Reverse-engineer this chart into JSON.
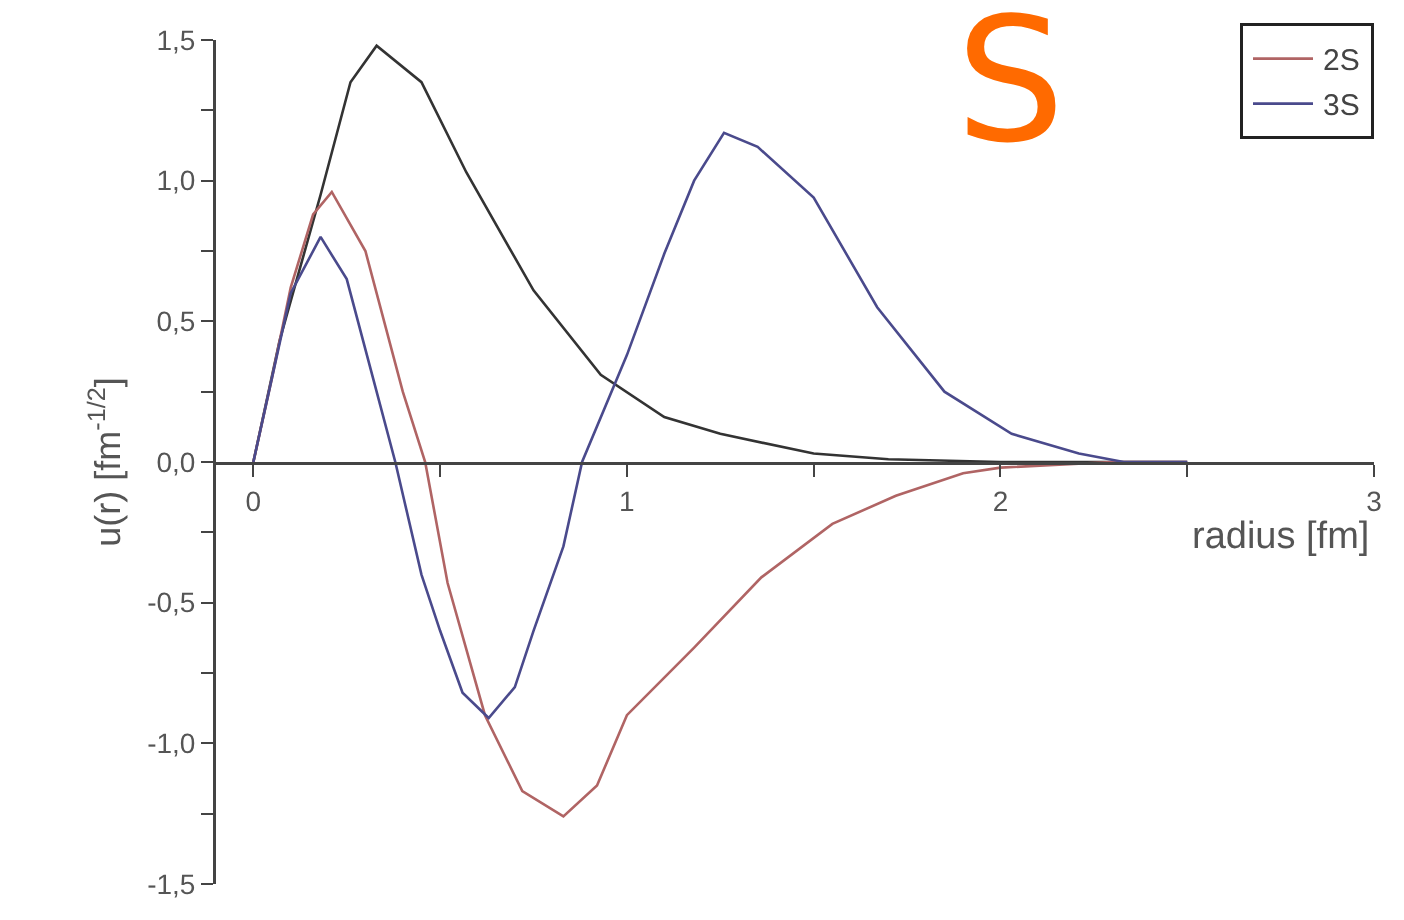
{
  "chart_data": {
    "type": "line",
    "title": "S",
    "xlabel": "radius [fm]",
    "ylabel": "u(r) [fm$^{-1/2}$]",
    "xlim": [
      -0.1,
      3
    ],
    "ylim": [
      -1.5,
      1.5
    ],
    "xticks": [
      0,
      {
        "value": 0.5,
        "label": null
      },
      1,
      {
        "value": 1.5,
        "label": null
      },
      2,
      {
        "value": 2.5,
        "label": null
      },
      3
    ],
    "yticks": [
      {
        "value": -1.5,
        "label": "-1,5"
      },
      {
        "value": -1.25,
        "label": null
      },
      {
        "value": -1,
        "label": "-1,0"
      },
      {
        "value": -0.75,
        "label": null
      },
      {
        "value": -0.5,
        "label": "-0,5"
      },
      {
        "value": -0.25,
        "label": null
      },
      {
        "value": 0,
        "label": "0,0"
      },
      {
        "value": 0.25,
        "label": null
      },
      {
        "value": 0.5,
        "label": "0,5"
      },
      {
        "value": 0.75,
        "label": null
      },
      {
        "value": 1,
        "label": "1,0"
      },
      {
        "value": 1.25,
        "label": null
      },
      {
        "value": 1.5,
        "label": "1,5"
      }
    ],
    "grid": false,
    "legend": "top right",
    "marker": "none",
    "line_style": "solid",
    "series": [
      {
        "color": "#333333",
        "x": [
          0,
          0.07,
          0.18,
          0.26,
          0.33,
          0.45,
          0.57,
          0.75,
          0.93,
          1.1,
          1.25,
          1.5,
          1.7,
          2.0,
          2.5
        ],
        "values": [
          0,
          0.43,
          0.95,
          1.35,
          1.48,
          1.35,
          1.03,
          0.61,
          0.31,
          0.16,
          0.1,
          0.03,
          0.01,
          0,
          0
        ]
      },
      {
        "name": "2S",
        "color": "#b06464",
        "x": [
          0,
          0.05,
          0.1,
          0.16,
          0.21,
          0.3,
          0.4,
          0.46,
          0.52,
          0.62,
          0.72,
          0.83,
          0.92,
          1.0,
          1.18,
          1.36,
          1.55,
          1.72,
          1.9,
          2.0,
          2.3,
          2.5
        ],
        "values": [
          0,
          0.3,
          0.62,
          0.88,
          0.96,
          0.75,
          0.25,
          0,
          -0.43,
          -0.9,
          -1.17,
          -1.26,
          -1.15,
          -0.9,
          -0.66,
          -0.41,
          -0.22,
          -0.12,
          -0.04,
          -0.02,
          0,
          0
        ]
      },
      {
        "name": "3S",
        "color": "#4a4a8c",
        "x": [
          0,
          0.05,
          0.1,
          0.18,
          0.25,
          0.32,
          0.38,
          0.45,
          0.5,
          0.56,
          0.63,
          0.7,
          0.75,
          0.83,
          0.88,
          1.0,
          1.1,
          1.18,
          1.26,
          1.35,
          1.5,
          1.67,
          1.85,
          2.03,
          2.21,
          2.33,
          2.5
        ],
        "values": [
          0,
          0.3,
          0.6,
          0.8,
          0.65,
          0.3,
          0,
          -0.4,
          -0.6,
          -0.82,
          -0.91,
          -0.8,
          -0.6,
          -0.3,
          0,
          0.38,
          0.74,
          1.0,
          1.17,
          1.12,
          0.94,
          0.55,
          0.25,
          0.1,
          0.03,
          0,
          0
        ]
      }
    ]
  }
}
